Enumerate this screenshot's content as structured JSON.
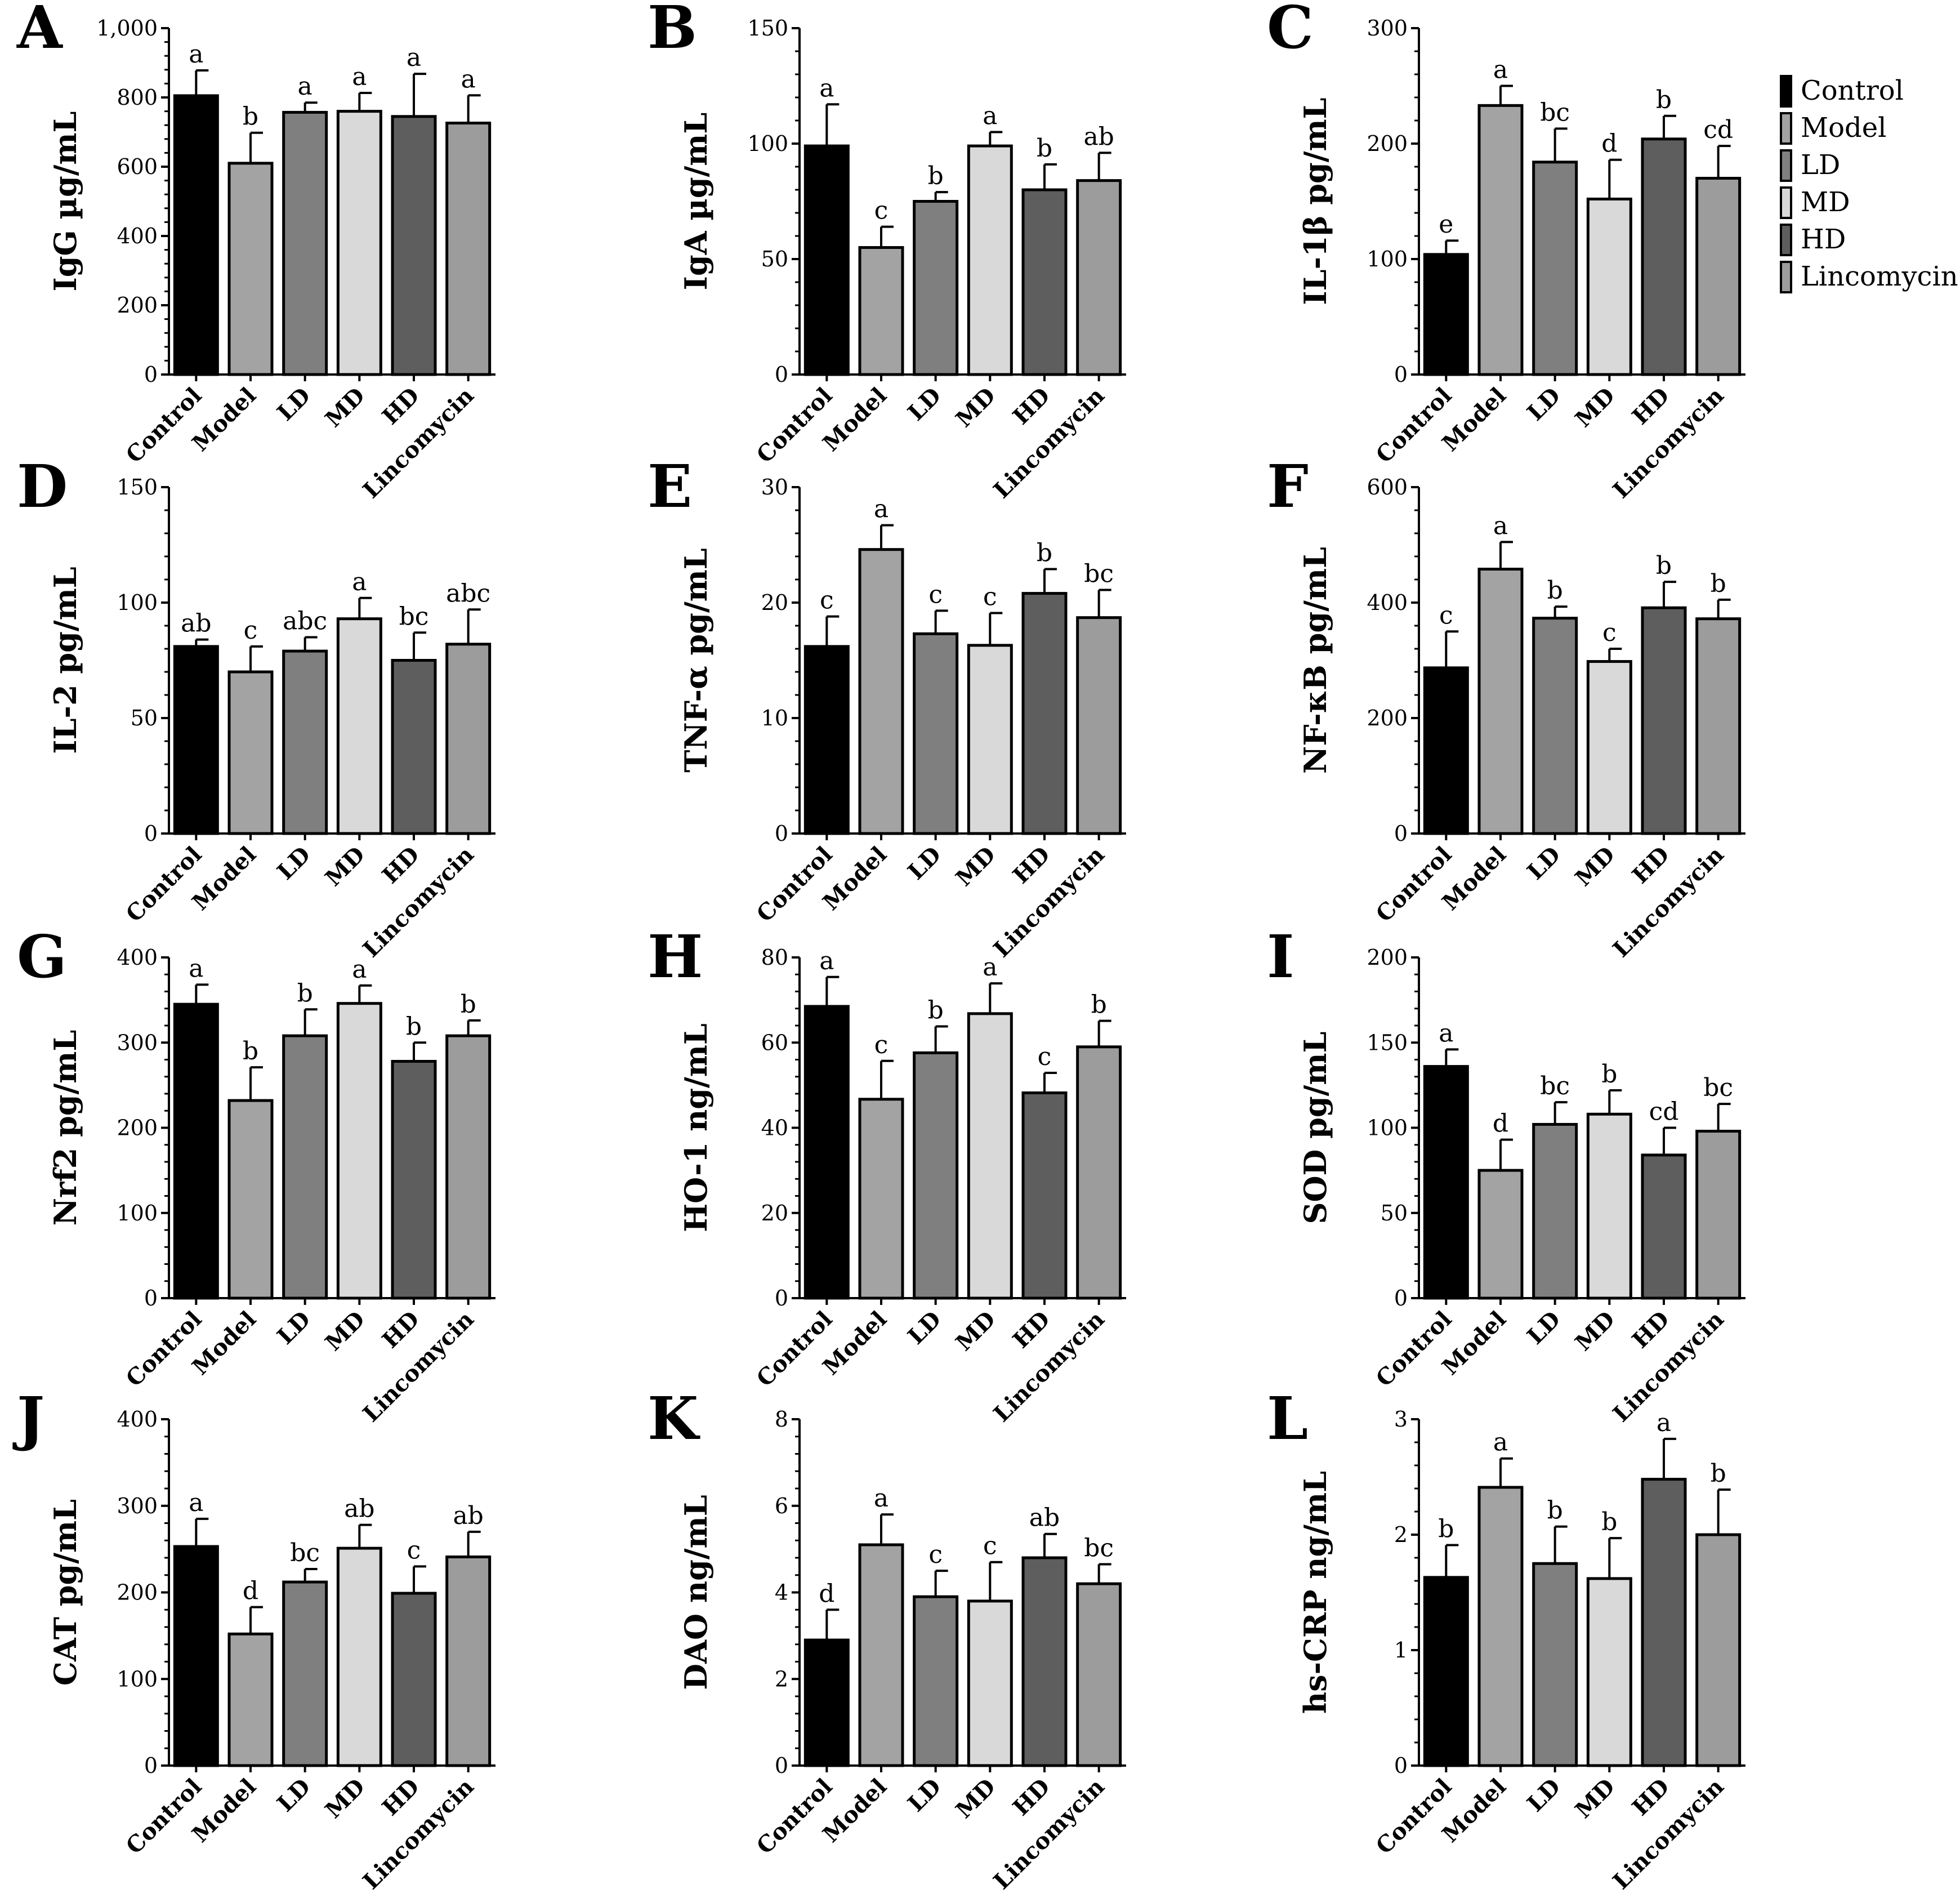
{
  "chart_data": [
    {
      "panel": "A",
      "type": "bar",
      "ylabel": "IgG µg/mL",
      "ylim": [
        0,
        1000
      ],
      "yticks": [
        0,
        200,
        400,
        600,
        800,
        1000
      ],
      "tick_labels": [
        "0",
        "200",
        "400",
        "600",
        "800",
        "1,000"
      ],
      "categories": [
        "Control",
        "Model",
        "LD",
        "MD",
        "HD",
        "Lincomycin"
      ],
      "values": [
        805,
        610,
        757,
        760,
        745,
        726
      ],
      "errors": [
        73,
        88,
        28,
        53,
        123,
        80
      ],
      "letters": [
        "a",
        "b",
        "a",
        "a",
        "a",
        "a"
      ]
    },
    {
      "panel": "B",
      "type": "bar",
      "ylabel": "IgA µg/mL",
      "ylim": [
        0,
        150
      ],
      "yticks": [
        0,
        50,
        100,
        150
      ],
      "tick_labels": [
        "0",
        "50",
        "100",
        "150"
      ],
      "categories": [
        "Control",
        "Model",
        "LD",
        "MD",
        "HD",
        "Lincomycin"
      ],
      "values": [
        99,
        55,
        75,
        99,
        80,
        84
      ],
      "errors": [
        18,
        9,
        4,
        6,
        11,
        12
      ],
      "letters": [
        "a",
        "c",
        "b",
        "a",
        "b",
        "ab"
      ]
    },
    {
      "panel": "C",
      "type": "bar",
      "ylabel": "IL-1β pg/mL",
      "ylim": [
        0,
        300
      ],
      "yticks": [
        0,
        100,
        200,
        300
      ],
      "tick_labels": [
        "0",
        "100",
        "200",
        "300"
      ],
      "categories": [
        "Control",
        "Model",
        "LD",
        "MD",
        "HD",
        "Lincomycin"
      ],
      "values": [
        104,
        233,
        184,
        152,
        204,
        170
      ],
      "errors": [
        12,
        17,
        29,
        34,
        20,
        28
      ],
      "letters": [
        "e",
        "a",
        "bc",
        "d",
        "b",
        "cd"
      ]
    },
    {
      "panel": "D",
      "type": "bar",
      "ylabel": "IL-2 pg/mL",
      "ylim": [
        0,
        150
      ],
      "yticks": [
        0,
        50,
        100,
        150
      ],
      "tick_labels": [
        "0",
        "50",
        "100",
        "150"
      ],
      "categories": [
        "Control",
        "Model",
        "LD",
        "MD",
        "HD",
        "Lincomycin"
      ],
      "values": [
        81,
        70,
        79,
        93,
        75,
        82
      ],
      "errors": [
        3,
        11,
        6,
        9,
        12,
        15
      ],
      "letters": [
        "ab",
        "c",
        "abc",
        "a",
        "bc",
        "abc"
      ]
    },
    {
      "panel": "E",
      "type": "bar",
      "ylabel": "TNF-α pg/mL",
      "ylim": [
        0,
        30
      ],
      "yticks": [
        0,
        10,
        20,
        30
      ],
      "tick_labels": [
        "0",
        "10",
        "20",
        "30"
      ],
      "categories": [
        "Control",
        "Model",
        "LD",
        "MD",
        "HD",
        "Lincomycin"
      ],
      "values": [
        16.2,
        24.6,
        17.3,
        16.3,
        20.8,
        18.7
      ],
      "errors": [
        2.6,
        2.1,
        2.0,
        2.8,
        2.1,
        2.4
      ],
      "letters": [
        "c",
        "a",
        "c",
        "c",
        "b",
        "bc"
      ]
    },
    {
      "panel": "F",
      "type": "bar",
      "ylabel": "NF-κB pg/mL",
      "ylim": [
        0,
        600
      ],
      "yticks": [
        0,
        200,
        400,
        600
      ],
      "tick_labels": [
        "0",
        "200",
        "400",
        "600"
      ],
      "categories": [
        "Control",
        "Model",
        "LD",
        "MD",
        "HD",
        "Lincomycin"
      ],
      "values": [
        287,
        458,
        373,
        298,
        391,
        372
      ],
      "errors": [
        63,
        47,
        20,
        22,
        45,
        33
      ],
      "letters": [
        "c",
        "a",
        "b",
        "c",
        "b",
        "b"
      ]
    },
    {
      "panel": "G",
      "type": "bar",
      "ylabel": "Nrf2 pg/mL",
      "ylim": [
        0,
        400
      ],
      "yticks": [
        0,
        100,
        200,
        300,
        400
      ],
      "tick_labels": [
        "0",
        "100",
        "200",
        "300",
        "400"
      ],
      "categories": [
        "Control",
        "Model",
        "LD",
        "MD",
        "HD",
        "Lincomycin"
      ],
      "values": [
        345,
        232,
        308,
        346,
        278,
        308
      ],
      "errors": [
        23,
        39,
        31,
        21,
        22,
        18
      ],
      "letters": [
        "a",
        "b",
        "b",
        "a",
        "b",
        "b"
      ]
    },
    {
      "panel": "H",
      "type": "bar",
      "ylabel": "HO-1 ng/mL",
      "ylim": [
        0,
        80
      ],
      "yticks": [
        0,
        20,
        40,
        60,
        80
      ],
      "tick_labels": [
        "0",
        "20",
        "40",
        "60",
        "80"
      ],
      "categories": [
        "Control",
        "Model",
        "LD",
        "MD",
        "HD",
        "Lincomycin"
      ],
      "values": [
        68.5,
        46.7,
        57.6,
        66.8,
        48.2,
        59.0
      ],
      "errors": [
        6.9,
        9.0,
        6.2,
        7.1,
        4.7,
        6.1
      ],
      "letters": [
        "a",
        "c",
        "b",
        "a",
        "c",
        "b"
      ]
    },
    {
      "panel": "I",
      "type": "bar",
      "ylabel": "SOD pg/mL",
      "ylim": [
        0,
        200
      ],
      "yticks": [
        0,
        50,
        100,
        150,
        200
      ],
      "tick_labels": [
        "0",
        "50",
        "100",
        "150",
        "200"
      ],
      "categories": [
        "Control",
        "Model",
        "LD",
        "MD",
        "HD",
        "Lincomycin"
      ],
      "values": [
        136,
        75,
        102,
        108,
        84,
        98
      ],
      "errors": [
        10,
        18,
        13,
        14,
        16,
        16
      ],
      "letters": [
        "a",
        "d",
        "bc",
        "b",
        "cd",
        "bc"
      ]
    },
    {
      "panel": "J",
      "type": "bar",
      "ylabel": "CAT pg/mL",
      "ylim": [
        0,
        400
      ],
      "yticks": [
        0,
        100,
        200,
        300,
        400
      ],
      "tick_labels": [
        "0",
        "100",
        "200",
        "300",
        "400"
      ],
      "categories": [
        "Control",
        "Model",
        "LD",
        "MD",
        "HD",
        "Lincomycin"
      ],
      "values": [
        253,
        152,
        212,
        251,
        199,
        241
      ],
      "errors": [
        32,
        31,
        15,
        27,
        31,
        29
      ],
      "letters": [
        "a",
        "d",
        "bc",
        "ab",
        "c",
        "ab"
      ]
    },
    {
      "panel": "K",
      "type": "bar",
      "ylabel": "DAO ng/mL",
      "ylim": [
        0,
        8
      ],
      "yticks": [
        0,
        2,
        4,
        6,
        8
      ],
      "tick_labels": [
        "0",
        "2",
        "4",
        "6",
        "8"
      ],
      "categories": [
        "Control",
        "Model",
        "LD",
        "MD",
        "HD",
        "Lincomycin"
      ],
      "values": [
        2.9,
        5.1,
        3.9,
        3.8,
        4.8,
        4.2
      ],
      "errors": [
        0.7,
        0.7,
        0.6,
        0.9,
        0.55,
        0.45
      ],
      "letters": [
        "d",
        "a",
        "c",
        "c",
        "ab",
        "bc"
      ]
    },
    {
      "panel": "L",
      "type": "bar",
      "ylabel": "hs-CRP ng/mL",
      "ylim": [
        0,
        3
      ],
      "yticks": [
        0,
        1,
        2,
        3
      ],
      "tick_labels": [
        "0",
        "1",
        "2",
        "3"
      ],
      "categories": [
        "Control",
        "Model",
        "LD",
        "MD",
        "HD",
        "Lincomycin"
      ],
      "values": [
        1.63,
        2.41,
        1.75,
        1.62,
        2.48,
        2.0
      ],
      "errors": [
        0.28,
        0.25,
        0.32,
        0.35,
        0.35,
        0.39
      ],
      "letters": [
        "b",
        "a",
        "b",
        "b",
        "a",
        "b"
      ]
    }
  ],
  "legend": [
    "Control",
    "Model",
    "LD",
    "MD",
    "HD",
    "Lincomycin"
  ],
  "colors": {
    "Control": "#000000",
    "Model": "#a3a3a3",
    "LD": "#7f7f7f",
    "MD": "#d9d9d9",
    "HD": "#5e5e5e",
    "Lincomycin": "#9c9c9c",
    "stroke": "#000000"
  }
}
